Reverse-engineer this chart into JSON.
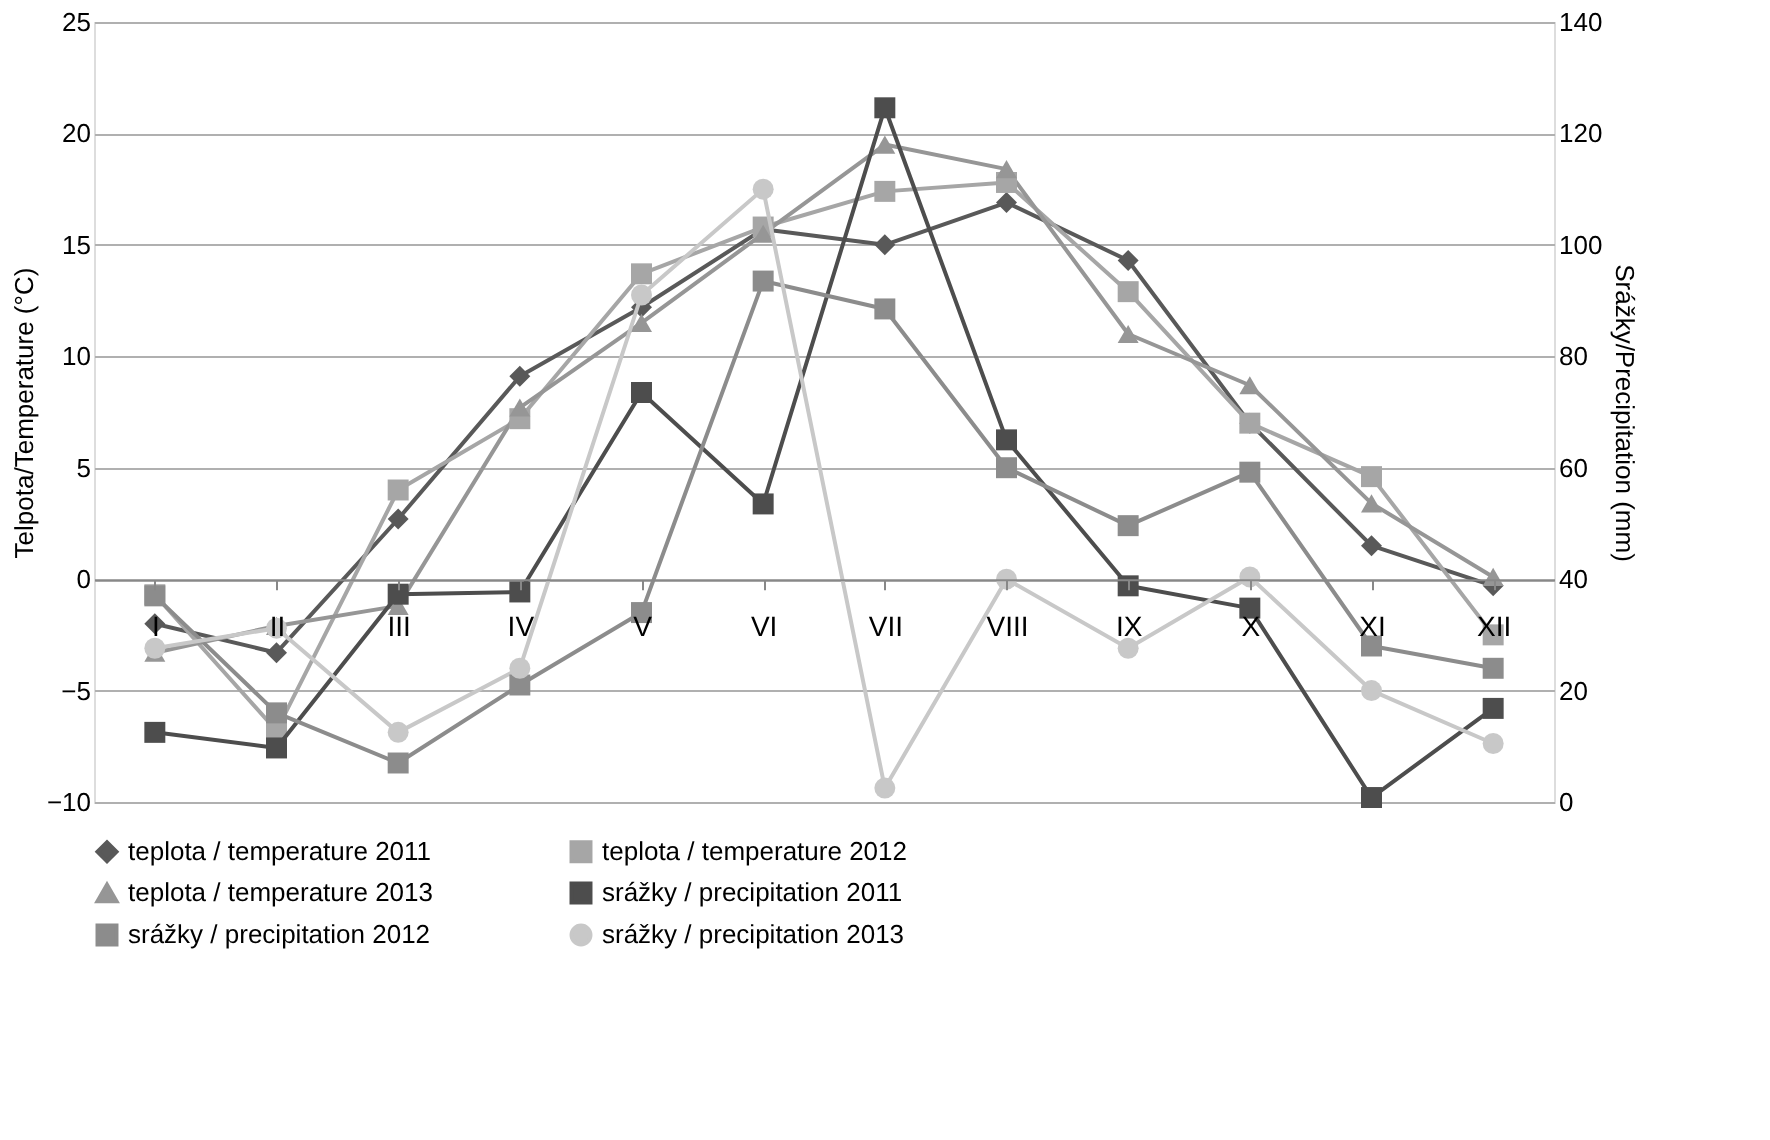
{
  "chart_data": {
    "type": "line",
    "ylabel": "Telpota/Temperature (°C)",
    "y2label": "Srážky/Precipitation (mm)",
    "categories": [
      "I",
      "II",
      "III",
      "IV",
      "V",
      "VI",
      "VII",
      "VIII",
      "IX",
      "X",
      "XI",
      "XII"
    ],
    "ylim": [
      -10,
      25
    ],
    "yticks": [
      -10,
      -5,
      0,
      5,
      10,
      15,
      20,
      25
    ],
    "y2lim": [
      0,
      140
    ],
    "y2ticks": [
      0,
      20,
      40,
      60,
      80,
      100,
      120,
      140
    ],
    "grid": "y",
    "legend": "bottom",
    "series": [
      {
        "name": "teplota / temperature 2011",
        "color": "#595959",
        "marker": "diamond",
        "values": [
          -2.0,
          -3.3,
          2.7,
          9.1,
          12.2,
          15.7,
          15.0,
          16.9,
          14.3,
          7.0,
          1.5,
          -0.3
        ]
      },
      {
        "name": "teplota  / temperature 2012",
        "color": "#a6a6a6",
        "marker": "square",
        "values": [
          -0.7,
          -6.8,
          4.0,
          7.2,
          13.7,
          15.8,
          17.4,
          17.8,
          12.9,
          7.0,
          4.6,
          -2.5
        ]
      },
      {
        "name": "teplota  / temperature 2013",
        "color": "#969696",
        "marker": "triangle",
        "values": [
          -3.3,
          -2.1,
          -1.2,
          7.7,
          11.5,
          15.5,
          19.5,
          18.4,
          11.0,
          8.7,
          3.4,
          0.1
        ]
      },
      {
        "name": "srážky / precipitation 2011",
        "color": "#4d4d4d",
        "marker": "square",
        "axis": "y2",
        "values": [
          12.5,
          9.7,
          37.3,
          37.7,
          73.5,
          53.5,
          124.6,
          65,
          38.8,
          34.8,
          0.8,
          16.8
        ]
      },
      {
        "name": "srážky / precipitation 2012",
        "color": "#8c8c8c",
        "marker": "square",
        "axis": "y2",
        "values": [
          37,
          16,
          7,
          21,
          34,
          93.5,
          88.5,
          60,
          49.6,
          59.2,
          28,
          24
        ]
      },
      {
        "name": "srážky / precipitation 2013",
        "color": "#c8c8c8",
        "marker": "circle",
        "axis": "y2",
        "values": [
          27.6,
          31.2,
          12.5,
          24,
          91,
          110,
          2.5,
          40,
          27.6,
          40.4,
          20,
          10.5
        ]
      }
    ]
  }
}
